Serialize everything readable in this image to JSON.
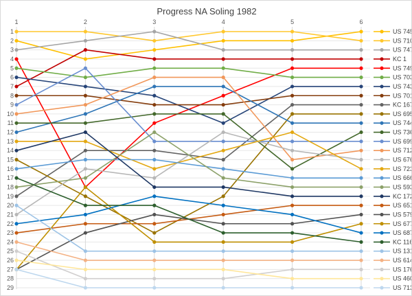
{
  "title": "Progress NA Soling 1982",
  "axes": {
    "top_ticks": [
      "1",
      "2",
      "3",
      "4",
      "5",
      "6"
    ],
    "left_ticks": [
      "1",
      "2",
      "3",
      "4",
      "5",
      "6",
      "7",
      "8",
      "9",
      "10",
      "11",
      "12",
      "13",
      "14",
      "15",
      "16",
      "17",
      "18",
      "19",
      "20",
      "21",
      "22",
      "23",
      "24",
      "25",
      "26",
      "27",
      "28",
      "29"
    ]
  },
  "colors": {
    "grid_h": "#e7e7e7",
    "grid_v": "#d9d9d9",
    "title": "#404040",
    "axis_text": "#595959",
    "legend_text": "#404040",
    "frame": "#d9d9d9"
  },
  "chart_data": {
    "type": "line",
    "title": "Progress NA Soling 1982",
    "x": [
      1,
      2,
      3,
      4,
      5,
      6
    ],
    "xlabel": "",
    "ylabel": "",
    "y_axis": "rank (1 = top)",
    "ylim": [
      1,
      29
    ],
    "grid": true,
    "legend_position": "right",
    "series": [
      {
        "name": "US 745",
        "color": "#FFC000",
        "values": [
          2,
          4,
          3,
          2,
          2,
          1
        ]
      },
      {
        "name": "US 710",
        "color": "#FFC72C",
        "values": [
          1,
          1,
          2,
          1,
          1,
          2
        ]
      },
      {
        "name": "US 747",
        "color": "#A5A5A5",
        "values": [
          3,
          2,
          1,
          3,
          3,
          3
        ]
      },
      {
        "name": "KC 1",
        "color": "#C00000",
        "values": [
          7,
          3,
          4,
          4,
          4,
          4
        ]
      },
      {
        "name": "US 749",
        "color": "#FF0000",
        "values": [
          4,
          18,
          11,
          8,
          5,
          5
        ]
      },
      {
        "name": "US 703",
        "color": "#70AD47",
        "values": [
          5,
          6,
          5,
          5,
          6,
          6
        ]
      },
      {
        "name": "US 743",
        "color": "#264478",
        "values": [
          6,
          7,
          8,
          11,
          7,
          7
        ]
      },
      {
        "name": "US 701",
        "color": "#843C0C",
        "values": [
          8,
          8,
          9,
          9,
          8,
          8
        ]
      },
      {
        "name": "KC 167",
        "color": "#636363",
        "values": [
          19,
          14,
          14,
          15,
          9,
          9
        ]
      },
      {
        "name": "US 695",
        "color": "#997300",
        "values": [
          15,
          19,
          23,
          19,
          10,
          10
        ]
      },
      {
        "name": "US 744",
        "color": "#2E75B6",
        "values": [
          12,
          10,
          7,
          7,
          11,
          11
        ]
      },
      {
        "name": "US 736",
        "color": "#43682B",
        "values": [
          11,
          11,
          10,
          10,
          16,
          12
        ]
      },
      {
        "name": "US 699",
        "color": "#698ED0",
        "values": [
          9,
          5,
          13,
          13,
          13,
          13
        ]
      },
      {
        "name": "US 712",
        "color": "#F1975A",
        "values": [
          10,
          9,
          6,
          6,
          15,
          14
        ]
      },
      {
        "name": "US 676",
        "color": "#B7B7B7",
        "values": [
          21,
          16,
          17,
          12,
          14,
          15
        ]
      },
      {
        "name": "US 723",
        "color": "#E3A812",
        "values": [
          13,
          13,
          16,
          14,
          12,
          16
        ]
      },
      {
        "name": "US 666",
        "color": "#5B9BD5",
        "values": [
          16,
          15,
          15,
          16,
          17,
          17
        ]
      },
      {
        "name": "US 593",
        "color": "#8CA169",
        "values": [
          18,
          17,
          12,
          17,
          18,
          18
        ]
      },
      {
        "name": "KC 172",
        "color": "#1F3864",
        "values": [
          14,
          12,
          18,
          18,
          19,
          19
        ]
      },
      {
        "name": "US 651",
        "color": "#C55A11",
        "values": [
          23,
          22,
          22,
          21,
          20,
          20
        ]
      },
      {
        "name": "US 579",
        "color": "#525252",
        "values": [
          27,
          23,
          21,
          22,
          22,
          21
        ]
      },
      {
        "name": "US 677",
        "color": "#BF8F00",
        "values": [
          27,
          18,
          24,
          24,
          24,
          22
        ]
      },
      {
        "name": "US 687",
        "color": "#0070C0",
        "values": [
          22,
          21,
          19,
          20,
          21,
          23
        ]
      },
      {
        "name": "KC 116",
        "color": "#2D5F2D",
        "values": [
          17,
          20,
          20,
          23,
          23,
          24
        ]
      },
      {
        "name": "US 131",
        "color": "#9DC3E6",
        "values": [
          20,
          25,
          25,
          25,
          25,
          25
        ]
      },
      {
        "name": "US 614",
        "color": "#F4B183",
        "values": [
          24,
          26,
          26,
          26,
          26,
          26
        ]
      },
      {
        "name": "US 176",
        "color": "#D0CECE",
        "values": [
          25,
          28,
          28,
          28,
          27,
          27
        ]
      },
      {
        "name": "US 460",
        "color": "#FFE699",
        "values": [
          26,
          27,
          27,
          27,
          28,
          28
        ]
      },
      {
        "name": "US 713",
        "color": "#BDD7EE",
        "values": [
          27,
          29,
          29,
          29,
          29,
          29
        ]
      }
    ]
  }
}
